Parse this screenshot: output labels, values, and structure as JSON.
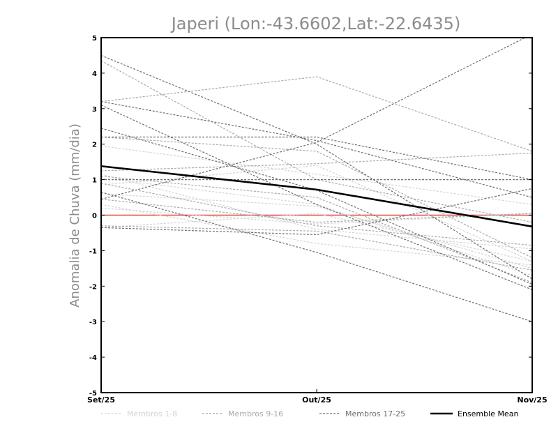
{
  "chart_data": {
    "type": "line",
    "title": "Japeri (Lon:-43.6602,Lat:-22.6435)",
    "ylabel": "Anomalia de Chuva (mm/dia)",
    "xlabel": "",
    "categories": [
      "Set/25",
      "Out/25",
      "Nov/25"
    ],
    "ylim": [
      -5,
      5
    ],
    "yticks": [
      "-5",
      "-4",
      "-3",
      "-2",
      "-1",
      "0",
      "1",
      "2",
      "3",
      "4",
      "5"
    ],
    "zero_line_color": "#e8453c",
    "legend": [
      {
        "label": "Membros 1-8",
        "color": "#d4d4d4",
        "dashed": true
      },
      {
        "label": "Membros 9-16",
        "color": "#a9a9a9",
        "dashed": true
      },
      {
        "label": "Membros 17-25",
        "color": "#6e6e6e",
        "dashed": true
      },
      {
        "label": "Ensemble Mean",
        "color": "#000000",
        "dashed": false
      }
    ],
    "groups": [
      {
        "name": "Membros 1-8",
        "color": "#d4d4d4",
        "series": [
          {
            "values": [
              1.95,
              1.15,
              0.3
            ]
          },
          {
            "values": [
              0.85,
              1.4,
              -1.3
            ]
          },
          {
            "values": [
              1.15,
              -0.4,
              -0.95
            ]
          },
          {
            "values": [
              0.6,
              0.25,
              -1.5
            ]
          },
          {
            "values": [
              0.3,
              -0.8,
              -1.4
            ]
          },
          {
            "values": [
              -0.35,
              0.05,
              -1.3
            ]
          },
          {
            "values": [
              1.05,
              0.3,
              -1.7
            ]
          },
          {
            "values": [
              0.2,
              -0.25,
              0.05
            ]
          }
        ]
      },
      {
        "name": "Membros 9-16",
        "color": "#a9a9a9",
        "series": [
          {
            "values": [
              3.2,
              3.9,
              1.8
            ]
          },
          {
            "values": [
              1.25,
              1.45,
              1.75
            ]
          },
          {
            "values": [
              2.2,
              1.8,
              -1.2
            ]
          },
          {
            "values": [
              0.9,
              -0.3,
              -0.85
            ]
          },
          {
            "values": [
              -0.3,
              -0.45,
              -1.55
            ]
          },
          {
            "values": [
              4.35,
              1.0,
              -0.2
            ]
          },
          {
            "values": [
              0.45,
              -0.2,
              0.05
            ]
          },
          {
            "values": [
              1.1,
              0.5,
              -1.9
            ]
          }
        ]
      },
      {
        "name": "Membros 17-25",
        "color": "#6e6e6e",
        "series": [
          {
            "values": [
              4.5,
              2.0,
              -1.8
            ]
          },
          {
            "values": [
              3.1,
              0.3,
              -2.1
            ]
          },
          {
            "values": [
              2.2,
              2.2,
              1.0
            ]
          },
          {
            "values": [
              0.45,
              2.05,
              5.1
            ]
          },
          {
            "values": [
              0.65,
              -1.05,
              -3.0
            ]
          },
          {
            "values": [
              1.0,
              1.0,
              1.0
            ]
          },
          {
            "values": [
              -0.35,
              -0.55,
              0.75
            ]
          },
          {
            "values": [
              2.45,
              0.7,
              -1.95
            ]
          },
          {
            "values": [
              3.2,
              2.1,
              0.5
            ]
          }
        ]
      }
    ],
    "ensemble_mean": {
      "name": "Ensemble Mean",
      "color": "#000000",
      "values": [
        1.38,
        0.72,
        -0.32
      ]
    }
  }
}
